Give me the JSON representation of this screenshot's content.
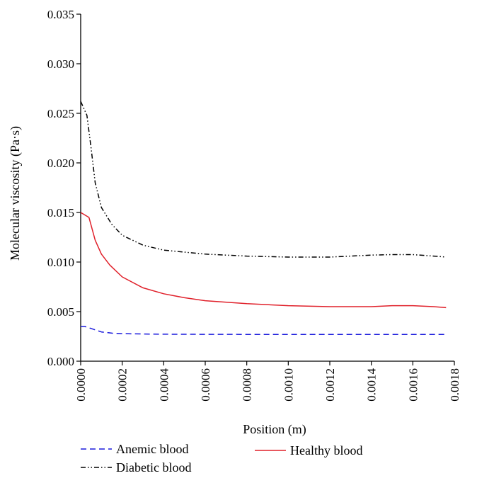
{
  "chart_data": {
    "type": "line",
    "title": "",
    "xlabel": "Position (m)",
    "ylabel": "Molecular viscosity (Pa·s)",
    "xlim": [
      0,
      0.0018
    ],
    "ylim": [
      0,
      0.035
    ],
    "x_ticks": [
      "0.0000",
      "0.0002",
      "0.0004",
      "0.0006",
      "0.0008",
      "0.0010",
      "0.0012",
      "0.0014",
      "0.0016",
      "0.0018"
    ],
    "y_ticks": [
      "0.000",
      "0.005",
      "0.010",
      "0.015",
      "0.020",
      "0.025",
      "0.030",
      "0.035"
    ],
    "grid": false,
    "legend_position": "bottom",
    "series": [
      {
        "name": "Anemic blood",
        "color": "#1a1adc",
        "dash": "dashed",
        "x": [
          0,
          2e-05,
          5e-05,
          0.0001,
          0.00015,
          0.0002,
          0.0003,
          0.0004,
          0.0006,
          0.0008,
          0.001,
          0.0012,
          0.0014,
          0.0016,
          0.00176
        ],
        "y": [
          0.0035,
          0.0035,
          0.0033,
          0.00295,
          0.00283,
          0.00278,
          0.00274,
          0.00272,
          0.00271,
          0.0027,
          0.0027,
          0.0027,
          0.0027,
          0.0027,
          0.0027
        ]
      },
      {
        "name": "Diabetic blood",
        "color": "#000000",
        "dash": "dash-dot-dot",
        "x": [
          0,
          3e-05,
          5e-05,
          7e-05,
          0.0001,
          0.00015,
          0.0002,
          0.0003,
          0.0004,
          0.0005,
          0.0006,
          0.0008,
          0.001,
          0.0012,
          0.0014,
          0.0015,
          0.0016,
          0.0017,
          0.00176
        ],
        "y": [
          0.0262,
          0.0248,
          0.0215,
          0.018,
          0.0155,
          0.0138,
          0.0127,
          0.0117,
          0.0112,
          0.011,
          0.0108,
          0.0106,
          0.0105,
          0.0105,
          0.0107,
          0.01075,
          0.01075,
          0.0106,
          0.0105
        ]
      },
      {
        "name": "Healthy blood",
        "color": "#e0202a",
        "dash": "solid",
        "x": [
          0,
          4e-05,
          7e-05,
          0.0001,
          0.00014,
          0.0002,
          0.0003,
          0.0004,
          0.0005,
          0.0006,
          0.0008,
          0.001,
          0.0012,
          0.0014,
          0.0015,
          0.0016,
          0.0017,
          0.00176
        ],
        "y": [
          0.015,
          0.0145,
          0.0122,
          0.0108,
          0.0097,
          0.0085,
          0.0074,
          0.0068,
          0.0064,
          0.0061,
          0.0058,
          0.0056,
          0.0055,
          0.0055,
          0.0056,
          0.0056,
          0.0055,
          0.0054
        ]
      }
    ],
    "legend_order": [
      "Anemic blood",
      "Healthy blood",
      "Diabetic blood"
    ]
  }
}
